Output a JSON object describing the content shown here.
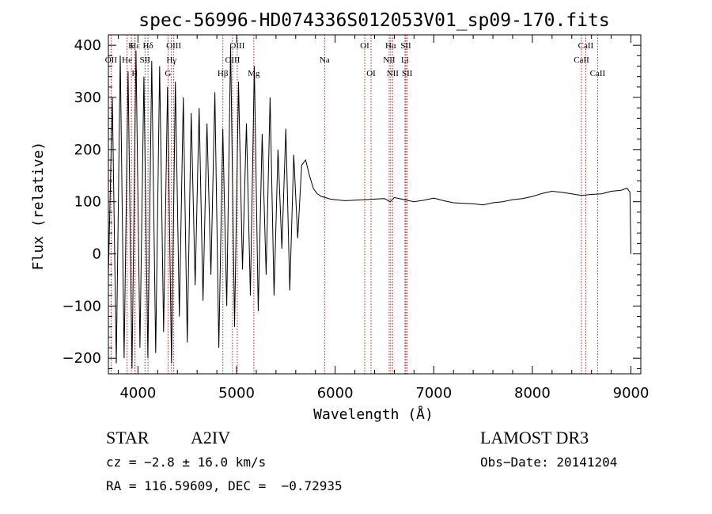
{
  "chart_data": {
    "type": "line",
    "title": "spec-56996-HD074336S012053V01_sp09-170.fits",
    "xlabel": "Wavelength (Å)",
    "ylabel": "Flux (relative)",
    "xlim": [
      3700,
      9100
    ],
    "ylim": [
      -230,
      420
    ],
    "xticks": [
      4000,
      5000,
      6000,
      7000,
      8000,
      9000
    ],
    "yticks": [
      -200,
      -100,
      0,
      100,
      200,
      300,
      400
    ],
    "x_tick_labels": [
      "4000",
      "5000",
      "6000",
      "7000",
      "8000",
      "9000"
    ],
    "y_tick_labels": [
      "−200",
      "−100",
      "0",
      "100",
      "200",
      "300",
      "400"
    ],
    "grid": false,
    "legend": "none",
    "line_color": "#000000",
    "marker_color": "#b22222",
    "series": [
      {
        "values_description_free": true,
        "x": [
          3700,
          3740,
          3780,
          3820,
          3860,
          3900,
          3940,
          3980,
          4020,
          4060,
          4100,
          4140,
          4180,
          4220,
          4260,
          4300,
          4340,
          4380,
          4420,
          4460,
          4500,
          4540,
          4580,
          4620,
          4660,
          4700,
          4740,
          4780,
          4820,
          4860,
          4900,
          4940,
          4980,
          5020,
          5060,
          5100,
          5140,
          5180,
          5220,
          5260,
          5300,
          5340,
          5380,
          5420,
          5460,
          5500,
          5540,
          5580,
          5620,
          5660,
          5700,
          5740,
          5780,
          5820,
          5860,
          5900,
          5950,
          6000,
          6100,
          6200,
          6300,
          6400,
          6500,
          6560,
          6600,
          6700,
          6800,
          6900,
          7000,
          7100,
          7200,
          7300,
          7400,
          7500,
          7600,
          7700,
          7800,
          7900,
          8000,
          8100,
          8200,
          8300,
          8400,
          8500,
          8600,
          8700,
          8800,
          8900,
          8960,
          8990,
          9000
        ],
        "y": [
          -40,
          300,
          -210,
          380,
          -200,
          350,
          -220,
          390,
          -180,
          340,
          -200,
          370,
          -190,
          360,
          -150,
          320,
          -210,
          330,
          -120,
          300,
          -170,
          270,
          -60,
          280,
          -90,
          250,
          -40,
          310,
          -180,
          240,
          -100,
          400,
          -140,
          330,
          -30,
          250,
          -80,
          360,
          -110,
          230,
          -40,
          300,
          -80,
          200,
          10,
          240,
          -70,
          190,
          30,
          170,
          180,
          150,
          125,
          115,
          110,
          108,
          105,
          104,
          102,
          103,
          104,
          105,
          106,
          100,
          108,
          104,
          100,
          103,
          107,
          102,
          98,
          97,
          96,
          94,
          98,
          100,
          104,
          106,
          110,
          116,
          120,
          118,
          115,
          112,
          114,
          115,
          120,
          122,
          126,
          118,
          0
        ]
      }
    ],
    "line_marks": [
      {
        "label": "Hε",
        "x": 3970,
        "row": 1
      },
      {
        "label": "K",
        "x": 3934,
        "row": 1
      },
      {
        "label": "Hδ",
        "x": 4102,
        "row": 1
      },
      {
        "label": "OIII",
        "x": 4363,
        "row": 1
      },
      {
        "label": "OIII",
        "x": 5007,
        "row": 1
      },
      {
        "label": "OI",
        "x": 6300,
        "row": 1
      },
      {
        "label": "Hα",
        "x": 6563,
        "row": 1
      },
      {
        "label": "SII",
        "x": 6717,
        "row": 1
      },
      {
        "label": "CaII",
        "x": 8542,
        "row": 1
      },
      {
        "label": "OII",
        "x": 3727,
        "row": 2
      },
      {
        "label": "He",
        "x": 3889,
        "row": 2
      },
      {
        "label": "SII",
        "x": 4072,
        "row": 2
      },
      {
        "label": "Hγ",
        "x": 4340,
        "row": 2
      },
      {
        "label": "OIII",
        "x": 4959,
        "row": 2
      },
      {
        "label": "Na",
        "x": 5893,
        "row": 2
      },
      {
        "label": "NII",
        "x": 6548,
        "row": 2
      },
      {
        "label": "Li",
        "x": 6708,
        "row": 2
      },
      {
        "label": "CaII",
        "x": 8498,
        "row": 2
      },
      {
        "label": "H",
        "x": 3968,
        "row": 3
      },
      {
        "label": "G",
        "x": 4305,
        "row": 3
      },
      {
        "label": "Hβ",
        "x": 4861,
        "row": 3
      },
      {
        "label": "Mg",
        "x": 5175,
        "row": 3
      },
      {
        "label": "OI",
        "x": 6364,
        "row": 3
      },
      {
        "label": "NII",
        "x": 6583,
        "row": 3
      },
      {
        "label": "SII",
        "x": 6731,
        "row": 3
      },
      {
        "label": "CaII",
        "x": 8662,
        "row": 3
      }
    ]
  },
  "info": {
    "object_class": "STAR",
    "subclass": "A2IV",
    "survey": "LAMOST DR3",
    "cz": "cz = −2.8 ± 16.0 km/s",
    "obs_date": "Obs−Date: 20141204",
    "coords": "RA = 116.59609, DEC =  −0.72935"
  }
}
